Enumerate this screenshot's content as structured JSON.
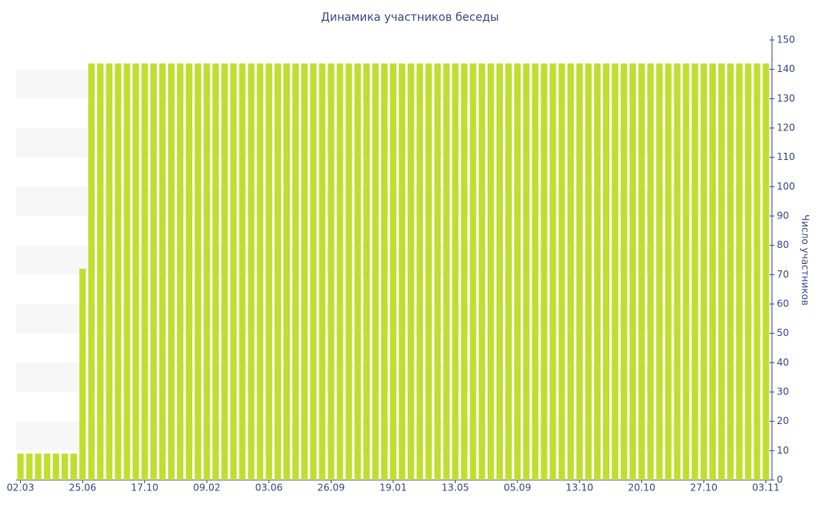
{
  "chart_data": {
    "type": "bar",
    "title": "Динамика участников беседы",
    "y_axis_label": "Число участников",
    "categories": [
      "02.03",
      null,
      null,
      null,
      null,
      null,
      null,
      "25.06",
      null,
      null,
      null,
      null,
      null,
      null,
      "17.10",
      null,
      null,
      null,
      null,
      null,
      null,
      "09.02",
      null,
      null,
      null,
      null,
      null,
      null,
      "03.06",
      null,
      null,
      null,
      null,
      null,
      null,
      "26.09",
      null,
      null,
      null,
      null,
      null,
      null,
      "19.01",
      null,
      null,
      null,
      null,
      null,
      null,
      "13.05",
      null,
      null,
      null,
      null,
      null,
      null,
      "05.09",
      null,
      null,
      null,
      null,
      null,
      null,
      "13.10",
      null,
      null,
      null,
      null,
      null,
      null,
      "20.10",
      null,
      null,
      null,
      null,
      null,
      null,
      "27.10",
      null,
      null,
      null,
      null,
      null,
      null,
      "03.11"
    ],
    "values": [
      9,
      9,
      9,
      9,
      9,
      9,
      9,
      72,
      142,
      142,
      142,
      142,
      142,
      142,
      142,
      142,
      142,
      142,
      142,
      142,
      142,
      142,
      142,
      142,
      142,
      142,
      142,
      142,
      142,
      142,
      142,
      142,
      142,
      142,
      142,
      142,
      142,
      142,
      142,
      142,
      142,
      142,
      142,
      142,
      142,
      142,
      142,
      142,
      142,
      142,
      142,
      142,
      142,
      142,
      142,
      142,
      142,
      142,
      142,
      142,
      142,
      142,
      142,
      142,
      142,
      142,
      142,
      142,
      142,
      142,
      142,
      142,
      142,
      142,
      142,
      142,
      142,
      142,
      142,
      142,
      142,
      142,
      142,
      142,
      142
    ],
    "color": "#bfdf2f",
    "ylim": [
      0,
      150
    ],
    "yticks": [
      0,
      10,
      20,
      30,
      40,
      50,
      60,
      70,
      80,
      90,
      100,
      110,
      120,
      130,
      140,
      150
    ],
    "y_axis_side": "right",
    "grid": "bands"
  }
}
